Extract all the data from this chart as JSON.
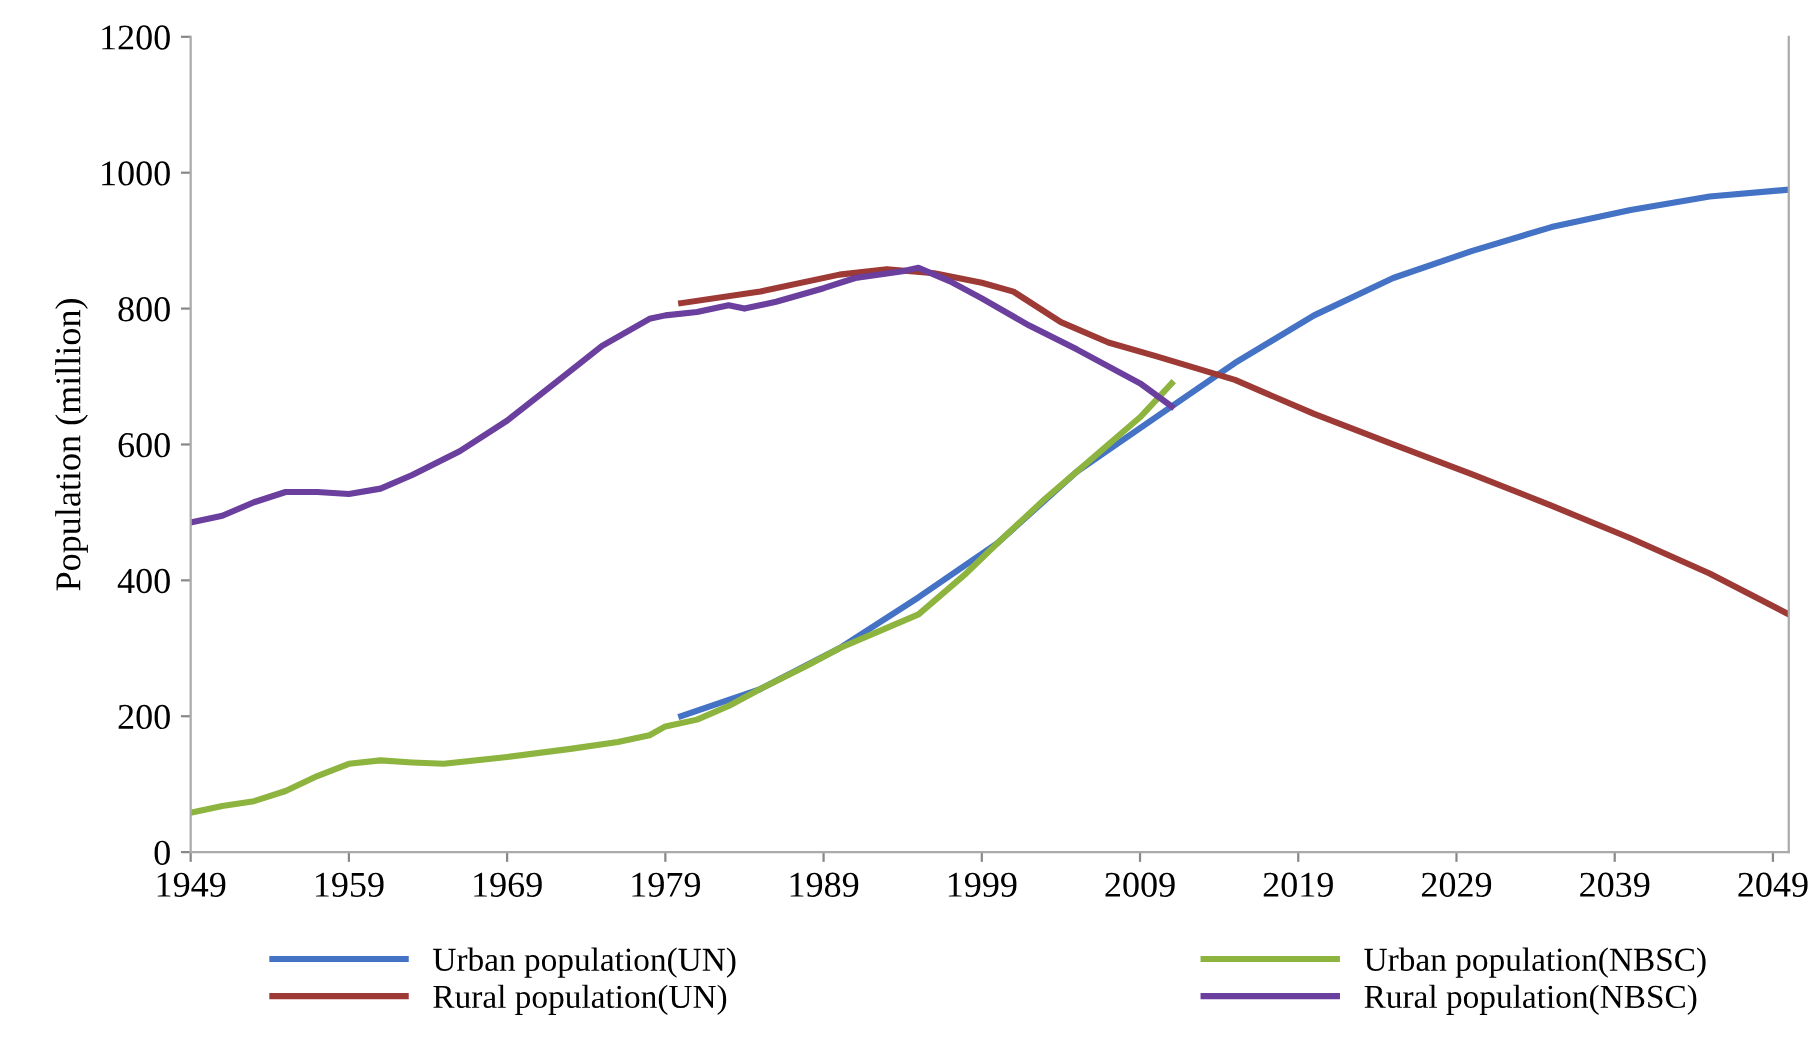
{
  "chart_data": {
    "type": "line",
    "ylabel": "Population (million)",
    "xlim": [
      1949,
      2050
    ],
    "xticks": [
      1949,
      1959,
      1969,
      1979,
      1989,
      1999,
      2009,
      2019,
      2029,
      2039,
      2049
    ],
    "ylim": [
      0,
      1200
    ],
    "yticks": [
      0,
      200,
      400,
      600,
      800,
      1000,
      1200
    ],
    "grid": false,
    "legend": "bottom",
    "series": [
      {
        "name": "Urban population(UN)",
        "color": "#4472c4",
        "x": [
          1980,
          1985,
          1990,
          1995,
          2000,
          2005,
          2010,
          2015,
          2020,
          2025,
          2030,
          2035,
          2040,
          2045,
          2050
        ],
        "values": [
          200,
          240,
          300,
          375,
          455,
          560,
          640,
          720,
          790,
          845,
          885,
          920,
          945,
          965,
          975
        ]
      },
      {
        "name": "Rural population(UN)",
        "color": "#9e3a36",
        "x": [
          1980,
          1985,
          1990,
          1993,
          1996,
          1999,
          2001,
          2004,
          2007,
          2010,
          2015,
          2020,
          2025,
          2030,
          2035,
          2040,
          2045,
          2050
        ],
        "values": [
          808,
          825,
          850,
          858,
          852,
          838,
          825,
          780,
          750,
          730,
          695,
          645,
          600,
          556,
          510,
          462,
          410,
          350
        ]
      },
      {
        "name": "Urban population(NBSC)",
        "color": "#8db43f",
        "x": [
          1949,
          1951,
          1953,
          1955,
          1957,
          1959,
          1961,
          1963,
          1965,
          1969,
          1973,
          1976,
          1978,
          1979,
          1981,
          1983,
          1985,
          1988,
          1990,
          1993,
          1995,
          1998,
          2000,
          2003,
          2006,
          2009,
          2011
        ],
        "values": [
          58,
          68,
          75,
          90,
          112,
          130,
          135,
          132,
          130,
          140,
          152,
          162,
          172,
          185,
          195,
          215,
          240,
          275,
          300,
          330,
          350,
          410,
          455,
          520,
          580,
          640,
          690
        ]
      },
      {
        "name": "Rural population(NBSC)",
        "color": "#6a3f9e",
        "x": [
          1949,
          1951,
          1953,
          1955,
          1957,
          1959,
          1961,
          1963,
          1966,
          1969,
          1972,
          1975,
          1978,
          1979,
          1981,
          1983,
          1984,
          1986,
          1989,
          1991,
          1994,
          1995,
          1997,
          1999,
          2002,
          2005,
          2007,
          2009,
          2011
        ],
        "values": [
          485,
          495,
          515,
          530,
          530,
          527,
          535,
          555,
          590,
          635,
          690,
          745,
          785,
          790,
          795,
          805,
          800,
          810,
          830,
          845,
          855,
          860,
          840,
          815,
          775,
          740,
          715,
          690,
          656
        ]
      }
    ]
  }
}
